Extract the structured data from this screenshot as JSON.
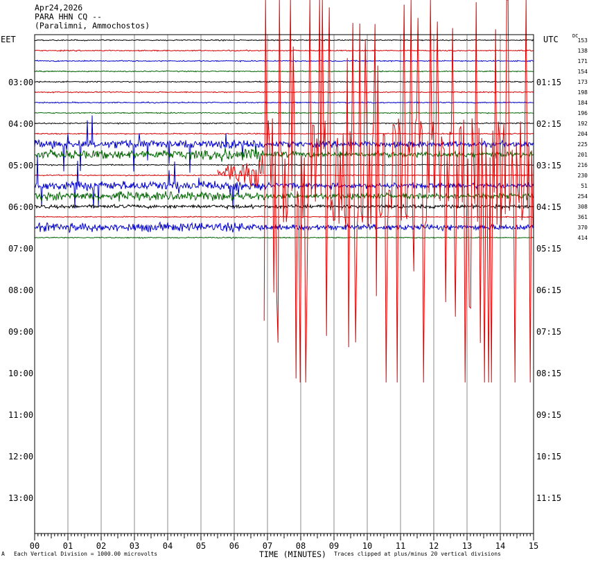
{
  "header": {
    "date": "Apr24,2026",
    "station": "PARA HHN CQ --",
    "location": "(Paralimni, Ammochostos)"
  },
  "left_zone": "EET",
  "right_zone": "UTC",
  "dc_header": "DC",
  "dc_values": [
    "153",
    "138",
    "171",
    "154",
    "173",
    "198",
    "184",
    "196",
    "192",
    "204",
    "225",
    "201",
    "216",
    "230",
    "51",
    "254",
    "308",
    "361",
    "370",
    "414"
  ],
  "footer": {
    "scale_note": "Each Vertical Division = 1000.00 microvolts",
    "x_title": "TIME (MINUTES)",
    "clip_note": "Traces clipped at plus/minus 20 vertical divisions",
    "corner_mark": "A"
  },
  "chart_data": {
    "type": "line",
    "title": "PARA HHN CQ --",
    "xlabel": "TIME (MINUTES)",
    "xlim": [
      0,
      15
    ],
    "x_ticks": [
      "00",
      "01",
      "02",
      "03",
      "04",
      "05",
      "06",
      "07",
      "08",
      "09",
      "10",
      "11",
      "12",
      "13",
      "14",
      "15"
    ],
    "left_time_labels": [
      "03:00",
      "04:00",
      "05:00",
      "06:00",
      "07:00",
      "08:00",
      "09:00",
      "10:00",
      "11:00",
      "12:00",
      "13:00"
    ],
    "right_time_labels": [
      "01:15",
      "02:15",
      "03:15",
      "04:15",
      "05:15",
      "06:15",
      "07:15",
      "08:15",
      "09:15",
      "10:15",
      "11:15"
    ],
    "trace_colors": [
      "#000000",
      "#d40000",
      "#0000c8",
      "#006400"
    ],
    "trace_count": 20,
    "event_onset_minute": 5.5,
    "strong_motion_onset_minute": 6.9,
    "clip_divisions": 20
  }
}
